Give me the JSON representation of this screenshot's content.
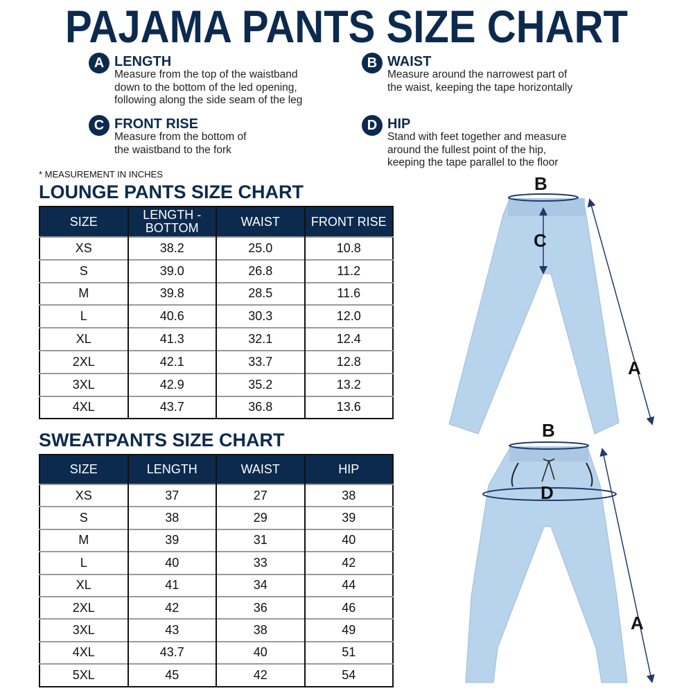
{
  "title": "PAJAMA PANTS SIZE CHART",
  "measurements": [
    {
      "key": "A",
      "label": "LENGTH",
      "description": "Measure from the top of the waistband\ndown to the bottom of the led opening,\nfollowing along the side seam of the leg"
    },
    {
      "key": "B",
      "label": "WAIST",
      "description": "Measure around the narrowest part of\nthe waist, keeping the tape horizontally"
    },
    {
      "key": "C",
      "label": "FRONT RISE",
      "description": "Measure from the bottom of\nthe waistband to the fork"
    },
    {
      "key": "D",
      "label": "HIP",
      "description": "Stand with feet together and measure\naround the fullest point of the hip,\nkeeping the tape parallel to the floor"
    }
  ],
  "note": "* MEASUREMENT IN INCHES",
  "lounge": {
    "title": "LOUNGE PANTS SIZE CHART",
    "headers": [
      "SIZE",
      "LENGTH - BOTTOM",
      "WAIST",
      "FRONT RISE"
    ],
    "rows": [
      [
        "XS",
        "38.2",
        "25.0",
        "10.8"
      ],
      [
        "S",
        "39.0",
        "26.8",
        "11.2"
      ],
      [
        "M",
        "39.8",
        "28.5",
        "11.6"
      ],
      [
        "L",
        "40.6",
        "30.3",
        "12.0"
      ],
      [
        "XL",
        "41.3",
        "32.1",
        "12.4"
      ],
      [
        "2XL",
        "42.1",
        "33.7",
        "12.8"
      ],
      [
        "3XL",
        "42.9",
        "35.2",
        "13.2"
      ],
      [
        "4XL",
        "43.7",
        "36.8",
        "13.6"
      ]
    ]
  },
  "sweat": {
    "title": "SWEATPANTS SIZE CHART",
    "headers": [
      "SIZE",
      "LENGTH",
      "WAIST",
      "HIP"
    ],
    "rows": [
      [
        "XS",
        "37",
        "27",
        "38"
      ],
      [
        "S",
        "38",
        "29",
        "39"
      ],
      [
        "M",
        "39",
        "31",
        "40"
      ],
      [
        "L",
        "40",
        "33",
        "42"
      ],
      [
        "XL",
        "41",
        "34",
        "44"
      ],
      [
        "2XL",
        "42",
        "36",
        "46"
      ],
      [
        "3XL",
        "43",
        "38",
        "49"
      ],
      [
        "4XL",
        "43.7",
        "40",
        "51"
      ],
      [
        "5XL",
        "45",
        "42",
        "54"
      ]
    ]
  },
  "diagram_labels": {
    "lounge": [
      "B",
      "C",
      "A"
    ],
    "sweat": [
      "B",
      "D",
      "A"
    ]
  },
  "colors": {
    "navy": "#0c2a4e",
    "pants": "#b8d3ec"
  }
}
